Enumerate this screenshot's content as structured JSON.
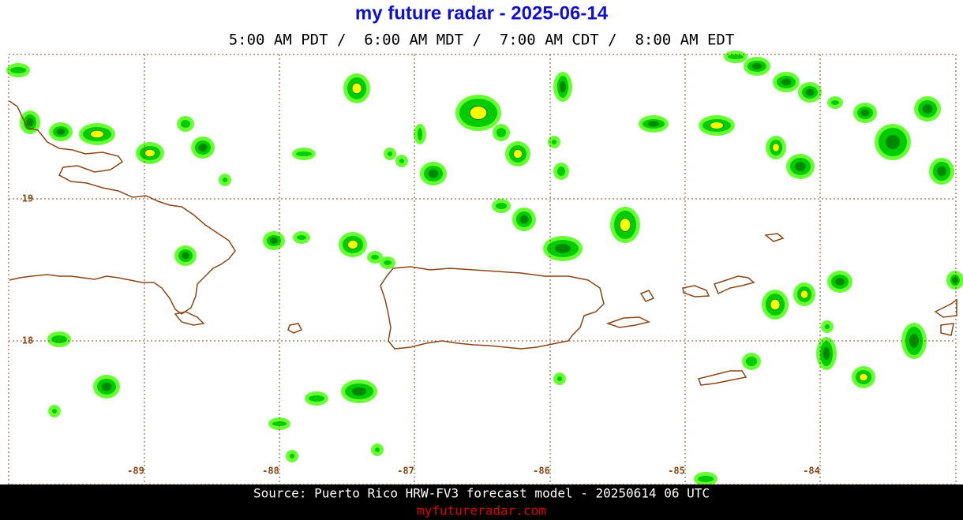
{
  "header": {
    "title": "my future radar - 2025-06-14",
    "subtitle": "5:00 AM PDT /  6:00 AM MDT /  7:00 AM CDT /  8:00 AM EDT"
  },
  "map": {
    "lat_labels": [
      "19",
      "18"
    ],
    "lon_labels": [
      "-89",
      "-88",
      "-87",
      "-86",
      "-85",
      "-84"
    ]
  },
  "footer": {
    "source": "Source: Puerto Rico HRW-FV3 forecast model - 20250614 06 UTC",
    "site": "myfutureradar.com"
  }
}
